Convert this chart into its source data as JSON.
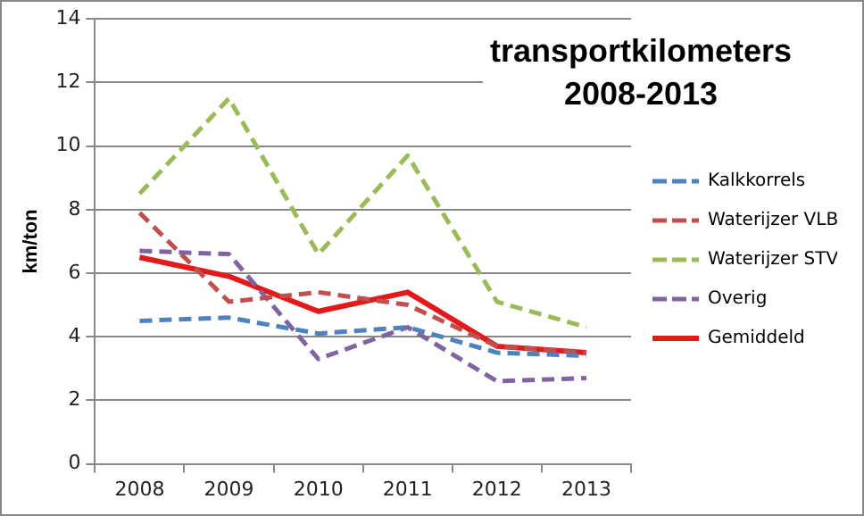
{
  "chart_data": {
    "type": "line",
    "title": "transportkilometers\n2008-2013",
    "ylabel": "km/ton",
    "categories": [
      "2008",
      "2009",
      "2010",
      "2011",
      "2012",
      "2013"
    ],
    "series": [
      {
        "name": "Kalkkorrels",
        "color": "#4f81bd",
        "line_style": "dashed",
        "values": [
          4.5,
          4.6,
          4.1,
          4.3,
          3.5,
          3.4
        ]
      },
      {
        "name": "Waterijzer VLB",
        "color": "#c0504d",
        "line_style": "dashed",
        "values": [
          7.9,
          5.1,
          5.4,
          5.0,
          3.7,
          3.5
        ]
      },
      {
        "name": "Waterijzer STV",
        "color": "#9bbb59",
        "line_style": "dashed",
        "values": [
          8.5,
          11.5,
          6.6,
          9.7,
          5.1,
          4.3
        ]
      },
      {
        "name": "Overig",
        "color": "#8064a2",
        "line_style": "dashed",
        "values": [
          6.7,
          6.6,
          3.3,
          4.3,
          2.6,
          2.7
        ]
      },
      {
        "name": "Gemiddeld",
        "color": "#e31a1c",
        "line_style": "solid",
        "values": [
          6.5,
          5.9,
          4.8,
          5.4,
          3.7,
          3.5
        ]
      }
    ],
    "ylim": [
      0,
      14
    ],
    "yticks": [
      0,
      2,
      4,
      6,
      8,
      10,
      12,
      14
    ],
    "grid": "y",
    "legend": "right",
    "marker": "none"
  }
}
